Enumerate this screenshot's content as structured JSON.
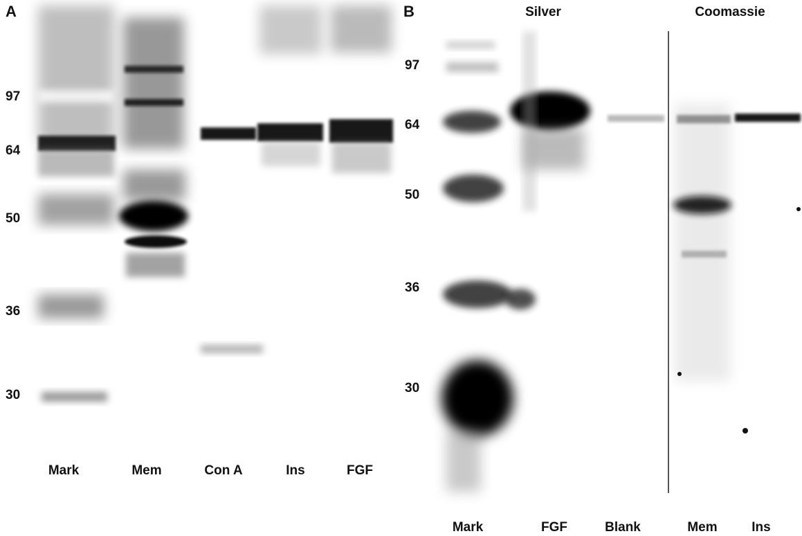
{
  "panel_a": {
    "label": "A",
    "markers": [
      "97",
      "64",
      "50",
      "36",
      "30"
    ],
    "lanes": [
      "Mark",
      "Mem",
      "Con A",
      "Ins",
      "FGF"
    ]
  },
  "panel_b": {
    "label": "B",
    "stains": [
      "Silver",
      "Coomassie"
    ],
    "markers": [
      "97",
      "64",
      "50",
      "36",
      "30"
    ],
    "lanes": [
      "Mark",
      "FGF",
      "Blank",
      "Mem",
      "Ins"
    ]
  }
}
